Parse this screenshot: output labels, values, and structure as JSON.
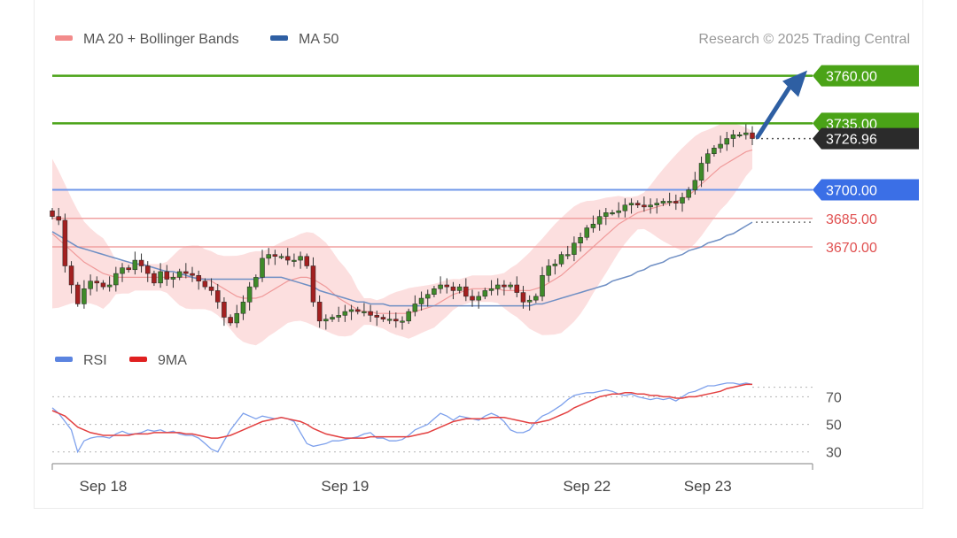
{
  "header": {
    "legend_items": [
      {
        "label": "MA 20 + Bollinger Bands",
        "color": "#f28b8b"
      },
      {
        "label": "MA 50",
        "color": "#2e5fa3"
      }
    ],
    "credit": "Research © 2025 Trading Central"
  },
  "rsi_panel": {
    "legend_items": [
      {
        "label": "RSI",
        "color": "#5b84e0"
      },
      {
        "label": "9MA",
        "color": "#e02020"
      }
    ]
  },
  "colors": {
    "resistance": "#4aa317",
    "pivot": "#3b6fe6",
    "support": "#e05050",
    "last": "#2b2b2b",
    "arrow": "#2e5fa3",
    "bull_candle": "#3f8a2a",
    "bear_candle": "#a32020",
    "band_fill": "#fbd7d7",
    "ma20": "#f09a9a",
    "ma50": "#6f8fc4",
    "rsi": "#7da0ec",
    "rsi_ma": "#e34040"
  },
  "chart_data": [
    {
      "type": "candlestick",
      "title": "",
      "x_tick_labels": [
        "Sep 18",
        "Sep 19",
        "Sep 22",
        "Sep 23"
      ],
      "last_price": 3726.96,
      "levels": [
        {
          "label": "3760.00",
          "value": 3760.0,
          "kind": "resistance"
        },
        {
          "label": "3735.00",
          "value": 3735.0,
          "kind": "resistance"
        },
        {
          "label": "3726.96",
          "value": 3726.96,
          "kind": "last"
        },
        {
          "label": "3700.00",
          "value": 3700.0,
          "kind": "pivot"
        },
        {
          "label": "3685.00",
          "value": 3685.0,
          "kind": "support"
        },
        {
          "label": "3670.00",
          "value": 3670.0,
          "kind": "support"
        }
      ],
      "ylim": [
        3623,
        3771
      ],
      "forecast_direction": "up",
      "closes": [
        3686,
        3684,
        3660,
        3650,
        3640,
        3648,
        3652,
        3651,
        3649,
        3650,
        3656,
        3659,
        3658,
        3663,
        3660,
        3656,
        3651,
        3657,
        3653,
        3654,
        3657,
        3656,
        3655,
        3652,
        3649,
        3647,
        3641,
        3633,
        3630,
        3635,
        3641,
        3649,
        3654,
        3664,
        3666,
        3665,
        3665,
        3663,
        3663,
        3665,
        3660,
        3641,
        3631,
        3632,
        3633,
        3634,
        3636,
        3637,
        3636,
        3636,
        3634,
        3633,
        3632,
        3632,
        3631,
        3631,
        3636,
        3640,
        3643,
        3645,
        3648,
        3650,
        3649,
        3647,
        3649,
        3644,
        3642,
        3644,
        3647,
        3648,
        3650,
        3649,
        3650,
        3646,
        3641,
        3642,
        3644,
        3655,
        3660,
        3661,
        3666,
        3666,
        3672,
        3675,
        3680,
        3682,
        3686,
        3688,
        3688,
        3689,
        3692,
        3693,
        3692,
        3691,
        3692,
        3693,
        3694,
        3694,
        3693,
        3696,
        3700,
        3705,
        3714,
        3719,
        3722,
        3724,
        3727,
        3729,
        3729,
        3730,
        3727
      ],
      "ma20": [
        3677,
        3674,
        3671,
        3668,
        3665,
        3662,
        3660,
        3658,
        3656,
        3655,
        3654,
        3654,
        3654,
        3654,
        3654,
        3654,
        3654,
        3654,
        3654,
        3654,
        3654,
        3654,
        3654,
        3654,
        3653,
        3652,
        3650,
        3648,
        3646,
        3644,
        3643,
        3643,
        3643,
        3644,
        3646,
        3648,
        3650,
        3652,
        3653,
        3654,
        3654,
        3653,
        3651,
        3649,
        3646,
        3643,
        3641,
        3639,
        3637,
        3636,
        3636,
        3635,
        3635,
        3635,
        3635,
        3635,
        3635,
        3636,
        3637,
        3638,
        3639,
        3641,
        3643,
        3645,
        3646,
        3647,
        3648,
        3648,
        3648,
        3648,
        3648,
        3647,
        3647,
        3647,
        3647,
        3647,
        3648,
        3649,
        3651,
        3653,
        3655,
        3658,
        3661,
        3664,
        3667,
        3670,
        3673,
        3676,
        3679,
        3682,
        3684,
        3686,
        3688,
        3689,
        3690,
        3691,
        3692,
        3693,
        3694,
        3695,
        3697,
        3700,
        3703,
        3706,
        3709,
        3712,
        3714,
        3716,
        3718,
        3720,
        3721
      ],
      "ma50": [
        3678,
        3676,
        3674,
        3672,
        3670,
        3669,
        3668,
        3667,
        3666,
        3665,
        3664,
        3663,
        3662,
        3661,
        3661,
        3660,
        3659,
        3658,
        3657,
        3657,
        3656,
        3655,
        3654,
        3653,
        3653,
        3653,
        3653,
        3653,
        3653,
        3653,
        3653,
        3653,
        3653,
        3654,
        3654,
        3654,
        3654,
        3653,
        3652,
        3651,
        3650,
        3649,
        3647,
        3646,
        3645,
        3644,
        3643,
        3642,
        3641,
        3641,
        3640,
        3640,
        3640,
        3639,
        3639,
        3639,
        3639,
        3639,
        3639,
        3639,
        3639,
        3639,
        3639,
        3639,
        3639,
        3639,
        3639,
        3639,
        3639,
        3639,
        3639,
        3639,
        3639,
        3639,
        3639,
        3639,
        3640,
        3640,
        3641,
        3642,
        3643,
        3644,
        3645,
        3646,
        3647,
        3648,
        3649,
        3650,
        3652,
        3653,
        3654,
        3655,
        3657,
        3658,
        3660,
        3661,
        3662,
        3664,
        3665,
        3666,
        3668,
        3669,
        3670,
        3672,
        3673,
        3674,
        3676,
        3677,
        3679,
        3681,
        3683
      ]
    },
    {
      "type": "line",
      "title": "",
      "y_ticks": [
        30,
        50,
        70
      ],
      "ylim": [
        24,
        87
      ],
      "reference_lines": [
        30,
        50,
        70,
        77
      ],
      "series": [
        {
          "name": "RSI",
          "values": [
            62,
            58,
            52,
            46,
            30,
            38,
            40,
            41,
            41,
            40,
            43,
            45,
            43,
            43,
            44,
            46,
            45,
            46,
            44,
            45,
            43,
            42,
            42,
            40,
            36,
            32,
            30,
            38,
            46,
            52,
            58,
            56,
            54,
            56,
            55,
            54,
            55,
            54,
            52,
            44,
            36,
            34,
            35,
            36,
            38,
            38,
            39,
            40,
            41,
            43,
            44,
            40,
            40,
            38,
            38,
            39,
            42,
            46,
            48,
            50,
            54,
            58,
            56,
            53,
            56,
            55,
            54,
            53,
            56,
            58,
            56,
            52,
            46,
            44,
            44,
            46,
            52,
            56,
            58,
            61,
            64,
            68,
            71,
            72,
            73,
            73,
            74,
            75,
            74,
            72,
            71,
            72,
            70,
            69,
            68,
            69,
            68,
            69,
            67,
            70,
            73,
            74,
            76,
            78,
            78,
            79,
            80,
            80,
            79,
            80,
            79
          ]
        },
        {
          "name": "9MA",
          "values": [
            60,
            58,
            56,
            52,
            48,
            46,
            44,
            43,
            42,
            42,
            42,
            42,
            42,
            43,
            43,
            43,
            44,
            44,
            44,
            44,
            44,
            43,
            43,
            42,
            41,
            40,
            40,
            41,
            42,
            44,
            46,
            48,
            50,
            52,
            53,
            54,
            55,
            54,
            53,
            52,
            50,
            47,
            45,
            43,
            42,
            41,
            40,
            40,
            40,
            40,
            41,
            41,
            41,
            41,
            41,
            41,
            41,
            42,
            43,
            44,
            46,
            48,
            50,
            52,
            53,
            54,
            54,
            54,
            54,
            55,
            55,
            55,
            54,
            53,
            52,
            51,
            51,
            52,
            53,
            55,
            57,
            59,
            62,
            64,
            66,
            68,
            70,
            71,
            72,
            72,
            73,
            73,
            72,
            72,
            71,
            71,
            70,
            70,
            69,
            69,
            70,
            70,
            71,
            72,
            73,
            74,
            76,
            77,
            78,
            79,
            79
          ]
        }
      ]
    }
  ]
}
